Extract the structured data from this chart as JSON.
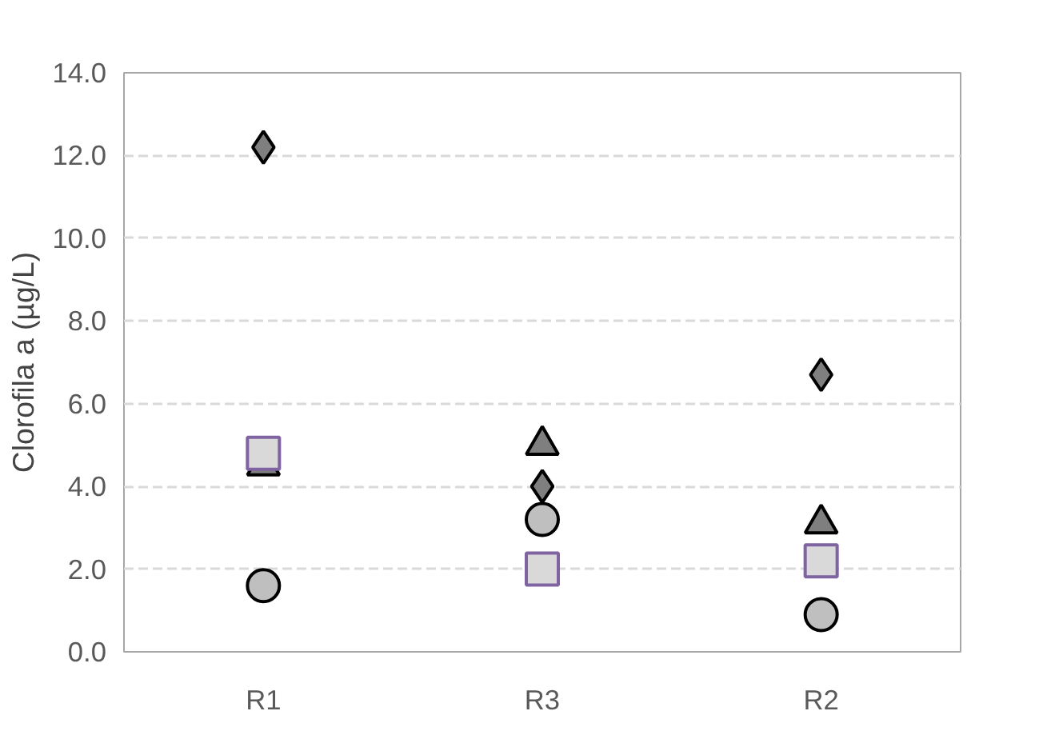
{
  "chart_data": {
    "type": "scatter",
    "ylabel": "Clorofila a (µg/L)",
    "categories": [
      "R1",
      "R3",
      "R2"
    ],
    "ylim": [
      0,
      14
    ],
    "yticks": [
      {
        "value": 0,
        "label": "0.0"
      },
      {
        "value": 2,
        "label": "2.0"
      },
      {
        "value": 4,
        "label": "4.0"
      },
      {
        "value": 6,
        "label": "6.0"
      },
      {
        "value": 8,
        "label": "8.0"
      },
      {
        "value": 10,
        "label": "10.0"
      },
      {
        "value": 12,
        "label": "12.0"
      },
      {
        "value": 14,
        "label": "14.0"
      }
    ],
    "grid": "y",
    "series": [
      {
        "marker": "circle",
        "color": "#bfbfbf",
        "values": [
          1.6,
          3.2,
          0.9
        ]
      },
      {
        "marker": "triangle",
        "color": "#7f7f7f",
        "values": [
          4.5,
          5.0,
          3.1
        ]
      },
      {
        "marker": "square",
        "color": "#d9d9d9",
        "values": [
          4.8,
          2.0,
          2.2
        ]
      },
      {
        "marker": "diamond",
        "color": "#7f7f7f",
        "values": [
          12.2,
          4.0,
          6.7
        ]
      }
    ]
  }
}
